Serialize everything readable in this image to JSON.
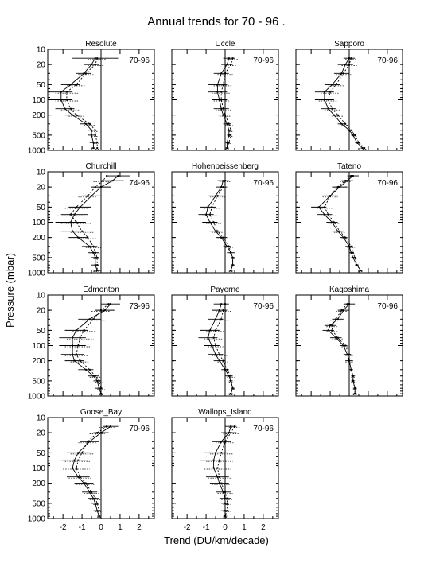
{
  "figure": {
    "title": "Annual trends for  70 - 96 .",
    "ylabel": "Pressure (mbar)",
    "xlabel": "Trend (DU/km/decade)"
  },
  "chart_data": [
    {
      "type": "line",
      "title": "Resolute",
      "period": "70-96",
      "xlim": [
        -2.8,
        2.8
      ],
      "ylim": [
        1000,
        10
      ],
      "yscale": "log",
      "pressure": [
        15,
        20,
        30,
        50,
        70,
        100,
        150,
        200,
        300,
        400,
        500,
        700,
        900
      ],
      "series": [
        {
          "name": "trend",
          "values": [
            -0.3,
            -0.5,
            -0.9,
            -1.6,
            -2.1,
            -2.1,
            -1.9,
            -1.5,
            -0.8,
            -0.5,
            -0.5,
            -0.4,
            -0.4
          ],
          "err": [
            1.2,
            0.4,
            0.4,
            0.5,
            0.6,
            0.6,
            0.5,
            0.4,
            0.3,
            0.2,
            0.2,
            0.2,
            0.1
          ]
        },
        {
          "name": "trend-alt",
          "values": [
            -0.2,
            -0.3,
            -0.8,
            -1.3,
            -1.8,
            -1.8,
            -1.6,
            -1.3,
            -0.6,
            -0.3,
            -0.3,
            -0.2,
            -0.2
          ],
          "err": [
            0.5,
            0.4,
            0.4,
            0.5,
            0.6,
            0.6,
            0.5,
            0.4,
            0.3,
            0.2,
            0.2,
            0.2,
            0.1
          ]
        }
      ],
      "xticks": [
        -2,
        -1,
        0,
        1,
        2
      ],
      "yticks": [
        10,
        20,
        50,
        100,
        200,
        500,
        1000
      ],
      "grid": false
    },
    {
      "type": "line",
      "title": "Uccle",
      "period": "70-96",
      "xlim": [
        -2.8,
        2.8
      ],
      "ylim": [
        1000,
        10
      ],
      "yscale": "log",
      "pressure": [
        15,
        20,
        30,
        50,
        70,
        100,
        150,
        200,
        300,
        400,
        500,
        700,
        900
      ],
      "series": [
        {
          "name": "trend",
          "values": [
            0.2,
            0.1,
            -0.2,
            -0.4,
            -0.4,
            -0.3,
            -0.2,
            -0.1,
            0.1,
            0.2,
            0.2,
            0.1,
            0.1
          ],
          "err": [
            0.3,
            0.3,
            0.4,
            0.5,
            0.5,
            0.4,
            0.4,
            0.3,
            0.2,
            0.1,
            0.1,
            0.1,
            0.1
          ]
        },
        {
          "name": "trend-alt",
          "values": [
            0.4,
            0.3,
            0.0,
            -0.1,
            -0.2,
            -0.2,
            -0.1,
            0.0,
            0.2,
            0.3,
            0.3,
            0.2,
            0.1
          ],
          "err": [
            0.3,
            0.3,
            0.4,
            0.5,
            0.5,
            0.4,
            0.4,
            0.3,
            0.2,
            0.1,
            0.1,
            0.1,
            0.1
          ]
        }
      ],
      "xticks": [
        -2,
        -1,
        0,
        1,
        2
      ],
      "yticks": [
        10,
        20,
        50,
        100,
        200,
        500,
        1000
      ],
      "grid": false
    },
    {
      "type": "line",
      "title": "Sapporo",
      "period": "70-96",
      "xlim": [
        -2.8,
        2.8
      ],
      "ylim": [
        1000,
        10
      ],
      "yscale": "log",
      "pressure": [
        15,
        20,
        30,
        50,
        70,
        100,
        150,
        200,
        300,
        400,
        500,
        700,
        900
      ],
      "series": [
        {
          "name": "trend",
          "values": [
            0.0,
            -0.2,
            -0.4,
            -0.9,
            -1.3,
            -1.3,
            -1.1,
            -0.8,
            -0.4,
            0.0,
            0.2,
            0.4,
            0.7
          ],
          "err": [
            0.3,
            0.4,
            0.4,
            0.4,
            0.5,
            0.5,
            0.4,
            0.3,
            0.2,
            0.1,
            0.1,
            0.1,
            0.1
          ]
        },
        {
          "name": "trend-alt",
          "values": [
            0.1,
            0.0,
            -0.3,
            -0.7,
            -1.0,
            -1.1,
            -0.9,
            -0.6,
            -0.2,
            0.1,
            0.3,
            0.5,
            0.8
          ],
          "err": [
            0.3,
            0.4,
            0.4,
            0.4,
            0.5,
            0.5,
            0.4,
            0.3,
            0.2,
            0.1,
            0.1,
            0.1,
            0.1
          ]
        }
      ],
      "xticks": [
        -2,
        -1,
        0,
        1,
        2
      ],
      "yticks": [
        10,
        20,
        50,
        100,
        200,
        500,
        1000
      ],
      "grid": false
    },
    {
      "type": "line",
      "title": "Churchill",
      "period": "74-96",
      "xlim": [
        -2.8,
        2.8
      ],
      "ylim": [
        1000,
        10
      ],
      "yscale": "log",
      "pressure": [
        12,
        15,
        20,
        30,
        50,
        70,
        100,
        150,
        200,
        300,
        400,
        500,
        700,
        900
      ],
      "series": [
        {
          "name": "trend",
          "values": [
            0.9,
            0.6,
            0.0,
            -0.5,
            -1.1,
            -1.4,
            -1.6,
            -1.5,
            -1.2,
            -0.6,
            -0.4,
            -0.3,
            -0.3,
            -0.2
          ],
          "err": [
            0.6,
            0.6,
            0.5,
            0.5,
            0.6,
            0.7,
            0.8,
            0.6,
            0.5,
            0.4,
            0.3,
            0.2,
            0.2,
            0.2
          ]
        },
        {
          "name": "trend-alt",
          "values": [
            0.3,
            0.1,
            -0.3,
            -0.7,
            -1.3,
            -1.6,
            -1.3,
            -1.0,
            -0.7,
            -0.4,
            -0.3,
            -0.2,
            -0.2,
            -0.2
          ],
          "err": [
            0.5,
            0.5,
            0.5,
            0.5,
            0.6,
            0.7,
            0.8,
            0.6,
            0.5,
            0.4,
            0.3,
            0.2,
            0.2,
            0.2
          ]
        }
      ],
      "xticks": [
        -2,
        -1,
        0,
        1,
        2
      ],
      "yticks": [
        10,
        20,
        50,
        100,
        200,
        500,
        1000
      ],
      "grid": false
    },
    {
      "type": "line",
      "title": "Hohenpeissenberg",
      "period": "70-96",
      "xlim": [
        -2.8,
        2.8
      ],
      "ylim": [
        1000,
        10
      ],
      "yscale": "log",
      "pressure": [
        15,
        20,
        30,
        50,
        70,
        100,
        150,
        200,
        300,
        400,
        500,
        700,
        900
      ],
      "series": [
        {
          "name": "trend",
          "values": [
            -0.1,
            -0.2,
            -0.5,
            -0.9,
            -1.0,
            -0.8,
            -0.5,
            -0.2,
            0.1,
            0.3,
            0.4,
            0.4,
            0.3
          ],
          "err": [
            0.3,
            0.3,
            0.4,
            0.4,
            0.4,
            0.4,
            0.3,
            0.3,
            0.2,
            0.2,
            0.1,
            0.1,
            0.1
          ]
        },
        {
          "name": "trend-alt",
          "values": [
            0.0,
            -0.1,
            -0.4,
            -0.7,
            -0.8,
            -0.6,
            -0.4,
            -0.1,
            0.2,
            0.3,
            0.4,
            0.4,
            0.3
          ],
          "err": [
            0.3,
            0.3,
            0.4,
            0.4,
            0.4,
            0.4,
            0.3,
            0.3,
            0.2,
            0.2,
            0.1,
            0.1,
            0.1
          ]
        }
      ],
      "xticks": [
        -2,
        -1,
        0,
        1,
        2
      ],
      "yticks": [
        10,
        20,
        50,
        100,
        200,
        500,
        1000
      ],
      "grid": false
    },
    {
      "type": "line",
      "title": "Tateno",
      "period": "70-96",
      "xlim": [
        -2.8,
        2.8
      ],
      "ylim": [
        1000,
        10
      ],
      "yscale": "log",
      "pressure": [
        12,
        15,
        20,
        30,
        50,
        70,
        100,
        150,
        200,
        300,
        400,
        500,
        700,
        900
      ],
      "series": [
        {
          "name": "trend",
          "values": [
            0.2,
            -0.1,
            -0.5,
            -1.0,
            -1.6,
            -1.3,
            -0.9,
            -0.6,
            -0.3,
            0.0,
            0.1,
            0.2,
            0.4,
            0.6
          ],
          "err": [
            0.3,
            0.3,
            0.4,
            0.4,
            0.4,
            0.4,
            0.3,
            0.3,
            0.2,
            0.2,
            0.1,
            0.1,
            0.1,
            0.1
          ]
        },
        {
          "name": "trend-alt",
          "values": [
            0.1,
            -0.2,
            -0.6,
            -1.0,
            -1.3,
            -1.1,
            -0.8,
            -0.5,
            -0.2,
            0.1,
            0.2,
            0.3,
            0.4,
            0.6
          ],
          "err": [
            0.3,
            0.3,
            0.4,
            0.4,
            0.4,
            0.4,
            0.3,
            0.3,
            0.2,
            0.2,
            0.1,
            0.1,
            0.1,
            0.1
          ]
        }
      ],
      "xticks": [
        -2,
        -1,
        0,
        1,
        2
      ],
      "yticks": [
        10,
        20,
        50,
        100,
        200,
        500,
        1000
      ],
      "grid": false
    },
    {
      "type": "line",
      "title": "Edmonton",
      "period": "73-96",
      "xlim": [
        -2.8,
        2.8
      ],
      "ylim": [
        1000,
        10
      ],
      "yscale": "log",
      "pressure": [
        15,
        20,
        30,
        50,
        70,
        100,
        150,
        200,
        300,
        400,
        500,
        700,
        900
      ],
      "series": [
        {
          "name": "trend",
          "values": [
            0.5,
            0.2,
            -0.6,
            -1.3,
            -1.5,
            -1.5,
            -1.5,
            -1.4,
            -0.8,
            -0.4,
            -0.2,
            -0.1,
            0.0
          ],
          "err": [
            0.5,
            0.5,
            0.6,
            0.6,
            0.7,
            0.7,
            0.6,
            0.5,
            0.4,
            0.3,
            0.2,
            0.2,
            0.1
          ]
        },
        {
          "name": "trend-alt",
          "values": [
            0.4,
            0.0,
            -0.4,
            -0.9,
            -1.1,
            -1.2,
            -1.3,
            -1.1,
            -0.6,
            -0.3,
            -0.1,
            0.0,
            0.0
          ],
          "err": [
            0.5,
            0.5,
            0.6,
            0.6,
            0.7,
            0.7,
            0.6,
            0.5,
            0.4,
            0.3,
            0.2,
            0.2,
            0.1
          ]
        }
      ],
      "xticks": [
        -2,
        -1,
        0,
        1,
        2
      ],
      "yticks": [
        10,
        20,
        50,
        100,
        200,
        500,
        1000
      ],
      "grid": false
    },
    {
      "type": "line",
      "title": "Payerne",
      "period": "70-96",
      "xlim": [
        -2.8,
        2.8
      ],
      "ylim": [
        1000,
        10
      ],
      "yscale": "log",
      "pressure": [
        15,
        20,
        30,
        50,
        70,
        100,
        150,
        200,
        300,
        400,
        500,
        700,
        900
      ],
      "series": [
        {
          "name": "trend",
          "values": [
            -0.2,
            -0.3,
            -0.5,
            -0.8,
            -0.9,
            -0.7,
            -0.5,
            -0.3,
            0.0,
            0.2,
            0.3,
            0.4,
            0.3
          ],
          "err": [
            0.4,
            0.4,
            0.4,
            0.5,
            0.5,
            0.4,
            0.4,
            0.3,
            0.2,
            0.2,
            0.1,
            0.1,
            0.1
          ]
        },
        {
          "name": "trend-alt",
          "values": [
            0.0,
            -0.1,
            -0.2,
            -0.5,
            -0.6,
            -0.5,
            -0.3,
            -0.1,
            0.1,
            0.3,
            0.3,
            0.4,
            0.3
          ],
          "err": [
            0.4,
            0.4,
            0.4,
            0.5,
            0.5,
            0.4,
            0.4,
            0.3,
            0.2,
            0.2,
            0.1,
            0.1,
            0.1
          ]
        }
      ],
      "xticks": [
        -2,
        -1,
        0,
        1,
        2
      ],
      "yticks": [
        10,
        20,
        50,
        100,
        200,
        500,
        1000
      ],
      "grid": false
    },
    {
      "type": "line",
      "title": "Kagoshima",
      "period": "70-96",
      "xlim": [
        -2.8,
        2.8
      ],
      "ylim": [
        1000,
        10
      ],
      "yscale": "log",
      "pressure": [
        15,
        20,
        30,
        40,
        50,
        70,
        100,
        150,
        200,
        300,
        400,
        500,
        700,
        900
      ],
      "series": [
        {
          "name": "trend",
          "values": [
            0.0,
            -0.3,
            -0.6,
            -1.0,
            -1.1,
            -0.7,
            -0.3,
            -0.1,
            0.0,
            0.1,
            0.2,
            0.2,
            0.3,
            0.3
          ],
          "err": [
            0.3,
            0.3,
            0.3,
            0.3,
            0.3,
            0.3,
            0.2,
            0.2,
            0.2,
            0.1,
            0.1,
            0.1,
            0.1,
            0.1
          ]
        },
        {
          "name": "trend-alt",
          "values": [
            -0.1,
            -0.4,
            -0.7,
            -0.9,
            -0.9,
            -0.6,
            -0.2,
            0.0,
            0.0,
            0.1,
            0.2,
            0.2,
            0.3,
            0.3
          ],
          "err": [
            0.3,
            0.3,
            0.3,
            0.3,
            0.3,
            0.3,
            0.2,
            0.2,
            0.2,
            0.1,
            0.1,
            0.1,
            0.1,
            0.1
          ]
        }
      ],
      "xticks": [
        -2,
        -1,
        0,
        1,
        2
      ],
      "yticks": [
        10,
        20,
        50,
        100,
        200,
        500,
        1000
      ],
      "grid": false
    },
    {
      "type": "line",
      "title": "Goose_Bay",
      "period": "70-96",
      "xlim": [
        -2.8,
        2.8
      ],
      "ylim": [
        1000,
        10
      ],
      "yscale": "log",
      "pressure": [
        15,
        20,
        30,
        50,
        70,
        100,
        150,
        200,
        300,
        400,
        500,
        700,
        900
      ],
      "series": [
        {
          "name": "trend",
          "values": [
            0.5,
            0.0,
            -0.6,
            -1.2,
            -1.4,
            -1.5,
            -1.2,
            -0.9,
            -0.6,
            -0.4,
            -0.3,
            -0.2,
            -0.1
          ],
          "err": [
            0.4,
            0.4,
            0.5,
            0.6,
            0.7,
            0.7,
            0.6,
            0.5,
            0.4,
            0.3,
            0.2,
            0.2,
            0.1
          ]
        },
        {
          "name": "trend-alt",
          "values": [
            0.3,
            -0.2,
            -0.7,
            -1.0,
            -1.2,
            -1.3,
            -1.1,
            -0.8,
            -0.5,
            -0.3,
            -0.2,
            -0.1,
            -0.1
          ],
          "err": [
            0.4,
            0.4,
            0.5,
            0.6,
            0.7,
            0.7,
            0.6,
            0.5,
            0.4,
            0.3,
            0.2,
            0.2,
            0.1
          ]
        }
      ],
      "xticks": [
        -2,
        -1,
        0,
        1,
        2
      ],
      "yticks": [
        10,
        20,
        50,
        100,
        200,
        500,
        1000
      ],
      "grid": false
    },
    {
      "type": "line",
      "title": "Wallops_Island",
      "period": "70-96",
      "xlim": [
        -2.8,
        2.8
      ],
      "ylim": [
        1000,
        10
      ],
      "yscale": "log",
      "pressure": [
        15,
        20,
        30,
        50,
        70,
        100,
        150,
        200,
        300,
        400,
        500,
        700,
        900
      ],
      "series": [
        {
          "name": "trend",
          "values": [
            0.3,
            0.2,
            -0.2,
            -0.5,
            -0.6,
            -0.6,
            -0.4,
            -0.3,
            -0.1,
            0.0,
            0.0,
            0.0,
            0.0
          ],
          "err": [
            0.3,
            0.4,
            0.5,
            0.6,
            0.7,
            0.7,
            0.6,
            0.5,
            0.4,
            0.3,
            0.2,
            0.2,
            0.1
          ]
        },
        {
          "name": "trend-alt",
          "values": [
            0.5,
            0.3,
            0.0,
            -0.2,
            -0.3,
            -0.4,
            -0.3,
            -0.2,
            0.0,
            0.1,
            0.1,
            0.1,
            0.0
          ],
          "err": [
            0.3,
            0.4,
            0.5,
            0.6,
            0.7,
            0.7,
            0.6,
            0.5,
            0.4,
            0.3,
            0.2,
            0.2,
            0.1
          ]
        }
      ],
      "xticks": [
        -2,
        -1,
        0,
        1,
        2
      ],
      "yticks": [
        10,
        20,
        50,
        100,
        200,
        500,
        1000
      ],
      "grid": false
    }
  ]
}
